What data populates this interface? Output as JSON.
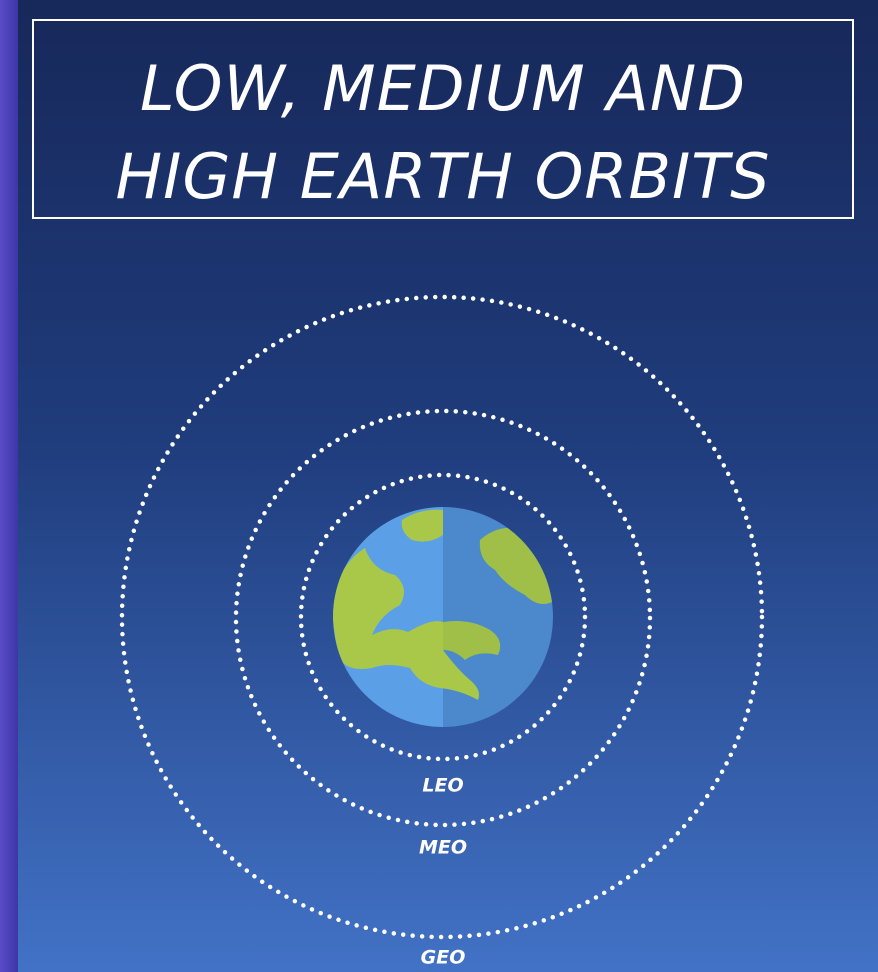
{
  "title": {
    "lines": [
      "LOW, MEDIUM AND",
      "HIGH EARTH ORBITS"
    ]
  },
  "orbits": [
    {
      "label": "LEO"
    },
    {
      "label": "MEO"
    },
    {
      "label": "GEO"
    }
  ]
}
